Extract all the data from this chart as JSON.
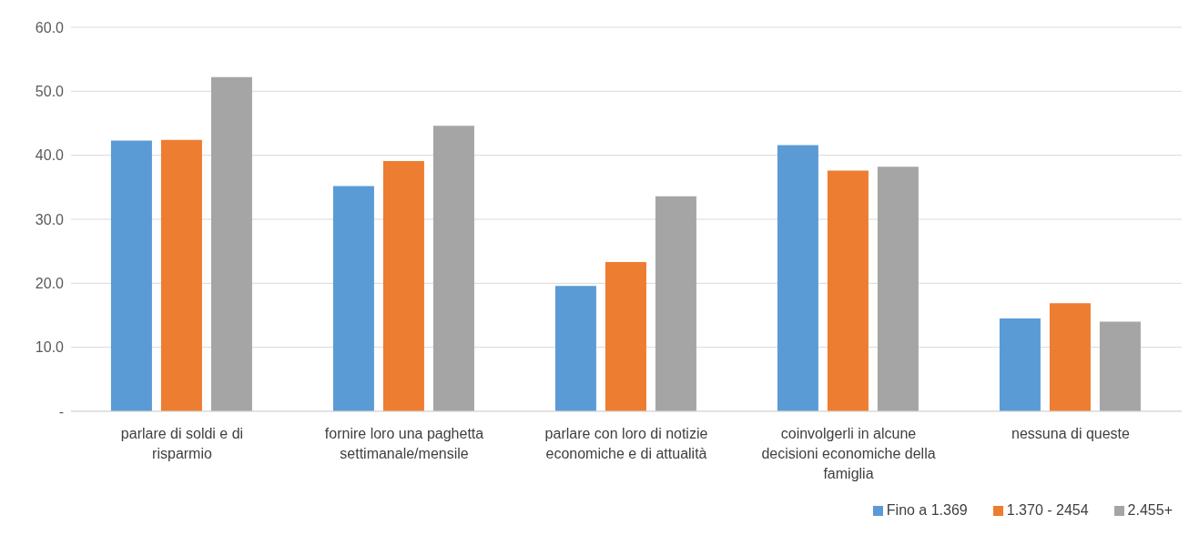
{
  "chart_data": {
    "type": "bar",
    "categories": [
      "parlare di soldi e di risparmio",
      "fornire loro una paghetta settimanale/mensile",
      "parlare con loro di notizie economiche e di attualità",
      "coinvolgerli in alcune decisioni economiche della famiglia",
      "nessuna di queste"
    ],
    "series": [
      {
        "name": "Fino a 1.369",
        "color": "#5b9bd5",
        "values": [
          42.3,
          35.2,
          19.6,
          41.6,
          14.5
        ]
      },
      {
        "name": "1.370 - 2454",
        "color": "#ed7d31",
        "values": [
          42.4,
          39.1,
          23.3,
          37.6,
          16.9
        ]
      },
      {
        "name": "2.455+",
        "color": "#a5a5a5",
        "values": [
          52.2,
          44.6,
          33.6,
          38.2,
          14.0
        ]
      }
    ],
    "ylim": [
      0,
      60
    ],
    "yticks": [
      {
        "value": 0,
        "label": "-"
      },
      {
        "value": 10,
        "label": "10.0"
      },
      {
        "value": 20,
        "label": "20.0"
      },
      {
        "value": 30,
        "label": "30.0"
      },
      {
        "value": 40,
        "label": "40.0"
      },
      {
        "value": 50,
        "label": "50.0"
      },
      {
        "value": 60,
        "label": "60.0"
      }
    ],
    "grid": "y",
    "legend": "bottom right"
  }
}
